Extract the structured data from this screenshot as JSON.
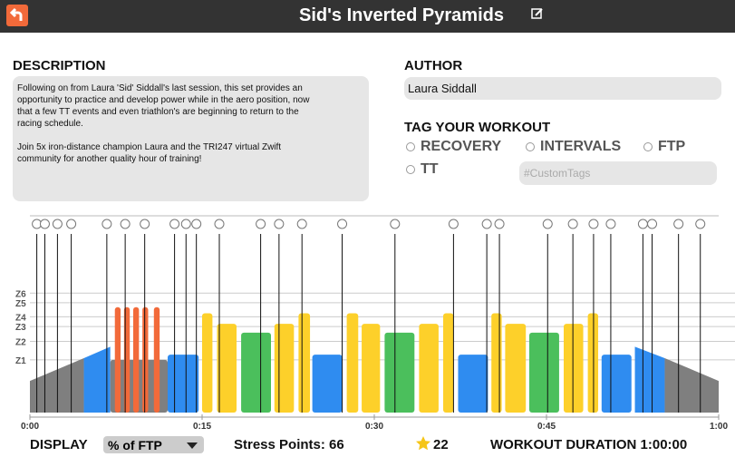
{
  "header": {
    "title": "Sid's Inverted Pyramids"
  },
  "description": {
    "heading": "DESCRIPTION",
    "lines": [
      "Following on from Laura 'Sid' Siddall's last session, this set provides an",
      "opportunity to practice and develop power while in the aero position, now",
      "that a few TT events and even triathlon's are beginning to return to the",
      "racing schedule.",
      "",
      "Join 5x iron-distance champion Laura and the TRI247 virtual Zwift",
      "community for another quality hour of training!"
    ]
  },
  "author": {
    "heading": "AUTHOR",
    "name": "Laura Siddall"
  },
  "tags": {
    "heading": "TAG YOUR WORKOUT",
    "options": [
      "RECOVERY",
      "INTERVALS",
      "FTP",
      "TT"
    ],
    "custom_placeholder": "#CustomTags"
  },
  "workout": {
    "xlim": [
      0,
      60
    ],
    "ylim": [
      0,
      224
    ],
    "xticks": [
      {
        "value": 0,
        "label": "0:00"
      },
      {
        "value": 15,
        "label": "0:15"
      },
      {
        "value": 30,
        "label": "0:30"
      },
      {
        "value": 45,
        "label": "0:45"
      },
      {
        "value": 60,
        "label": "1:00"
      }
    ],
    "zones": [
      {
        "value": 60,
        "label": "Z1"
      },
      {
        "value": 81,
        "label": "Z2"
      },
      {
        "value": 98,
        "label": "Z3"
      },
      {
        "value": 109,
        "label": "Z4"
      },
      {
        "value": 125,
        "label": "Z5"
      },
      {
        "value": 136,
        "label": "Z6"
      }
    ],
    "events": [
      0.6,
      1.3,
      2.4,
      3.6,
      6.7,
      8.3,
      10.0,
      12.6,
      13.6,
      14.5,
      16.5,
      20.1,
      21.7,
      23.7,
      27.2,
      31.8,
      36.9,
      39.8,
      40.9,
      45.1,
      47.3,
      49.1,
      50.6,
      53.4,
      54.2,
      56.5,
      58.4
    ],
    "blocks": [
      {
        "start": 0,
        "end": 4.7,
        "power_start": 36,
        "power_end": 62,
        "color": "#7f7f7f"
      },
      {
        "start": 4.7,
        "end": 7.0,
        "power_start": 62,
        "power_end": 75,
        "color": "#2f8cf0"
      },
      {
        "start": 7.0,
        "end": 12.0,
        "power": 60,
        "color": "#7f7f7f"
      },
      {
        "start": 7.4,
        "end": 7.9,
        "power": 120,
        "color": "#f26a3a"
      },
      {
        "start": 8.2,
        "end": 8.7,
        "power": 120,
        "color": "#f26a3a"
      },
      {
        "start": 9.0,
        "end": 9.5,
        "power": 120,
        "color": "#f26a3a"
      },
      {
        "start": 9.8,
        "end": 10.3,
        "power": 120,
        "color": "#f26a3a"
      },
      {
        "start": 10.8,
        "end": 11.3,
        "power": 120,
        "color": "#f26a3a"
      },
      {
        "start": 12.0,
        "end": 14.7,
        "power": 66,
        "color": "#2f8cf0"
      },
      {
        "start": 15.0,
        "end": 15.9,
        "power": 113,
        "color": "#fdd02a"
      },
      {
        "start": 16.3,
        "end": 18.0,
        "power": 101,
        "color": "#fdd02a"
      },
      {
        "start": 18.4,
        "end": 21.0,
        "power": 91,
        "color": "#4bbf5c"
      },
      {
        "start": 21.3,
        "end": 23.0,
        "power": 101,
        "color": "#fdd02a"
      },
      {
        "start": 23.4,
        "end": 24.4,
        "power": 113,
        "color": "#fdd02a"
      },
      {
        "start": 24.6,
        "end": 27.2,
        "power": 66,
        "color": "#2f8cf0"
      },
      {
        "start": 27.6,
        "end": 28.6,
        "power": 113,
        "color": "#fdd02a"
      },
      {
        "start": 28.9,
        "end": 30.5,
        "power": 101,
        "color": "#fdd02a"
      },
      {
        "start": 30.9,
        "end": 33.5,
        "power": 91,
        "color": "#4bbf5c"
      },
      {
        "start": 33.9,
        "end": 35.6,
        "power": 101,
        "color": "#fdd02a"
      },
      {
        "start": 36.0,
        "end": 36.9,
        "power": 113,
        "color": "#fdd02a"
      },
      {
        "start": 37.3,
        "end": 39.9,
        "power": 66,
        "color": "#2f8cf0"
      },
      {
        "start": 40.2,
        "end": 41.1,
        "power": 113,
        "color": "#fdd02a"
      },
      {
        "start": 41.4,
        "end": 43.2,
        "power": 101,
        "color": "#fdd02a"
      },
      {
        "start": 43.5,
        "end": 46.1,
        "power": 91,
        "color": "#4bbf5c"
      },
      {
        "start": 46.5,
        "end": 48.2,
        "power": 101,
        "color": "#fdd02a"
      },
      {
        "start": 48.6,
        "end": 49.5,
        "power": 113,
        "color": "#fdd02a"
      },
      {
        "start": 49.8,
        "end": 52.4,
        "power": 66,
        "color": "#2f8cf0"
      },
      {
        "start": 52.7,
        "end": 55.3,
        "power_start": 75,
        "power_end": 62,
        "color": "#2f8cf0"
      },
      {
        "start": 55.3,
        "end": 60,
        "power_start": 62,
        "power_end": 36,
        "color": "#7f7f7f"
      }
    ]
  },
  "footer": {
    "display_label": "DISPLAY",
    "display_value": "% of FTP",
    "stress_points": "Stress Points: 66",
    "stars": "22",
    "duration": "WORKOUT DURATION 1:00:00"
  }
}
